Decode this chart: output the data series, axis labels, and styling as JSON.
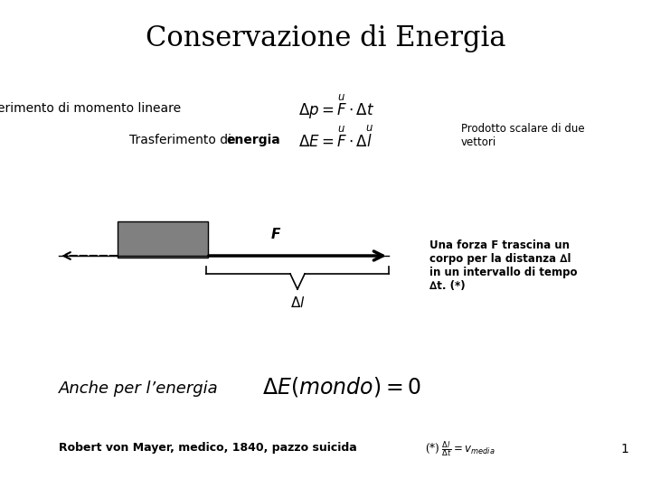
{
  "title": "Conservazione di Energia",
  "title_fontsize": 22,
  "bg_color": "#ffffff",
  "line1_label": "Trasferimento di momento lineare",
  "line1_formula": "$\\Delta p = \\overset{\\scriptscriptstyle u}{F} \\cdot \\Delta t$",
  "line2_label_pre": "Trasferimento di ",
  "line2_label_bold": "energia",
  "line2_formula": "$\\Delta E = \\overset{\\scriptscriptstyle u}{F} \\cdot \\Delta\\overset{\\scriptscriptstyle u}{l}$",
  "note_text": "Prodotto scalare di due\nvettori",
  "diagram_box_color": "#808080",
  "note2_text": "Una forza F trascina un\ncorpo per la distanza ∆l\nin un intervallo di tempo\n∆t. (*)",
  "bottom_label": "Anche per l’energia",
  "bottom_formula": "$\\Delta E(mondo) = 0$",
  "footnote_text": "Robert von Mayer, medico, 1840, pazzo suicida",
  "footnote2_text": "(*) $\\frac{\\Delta l}{\\Delta t} = v_{media}$",
  "page_num": "1"
}
